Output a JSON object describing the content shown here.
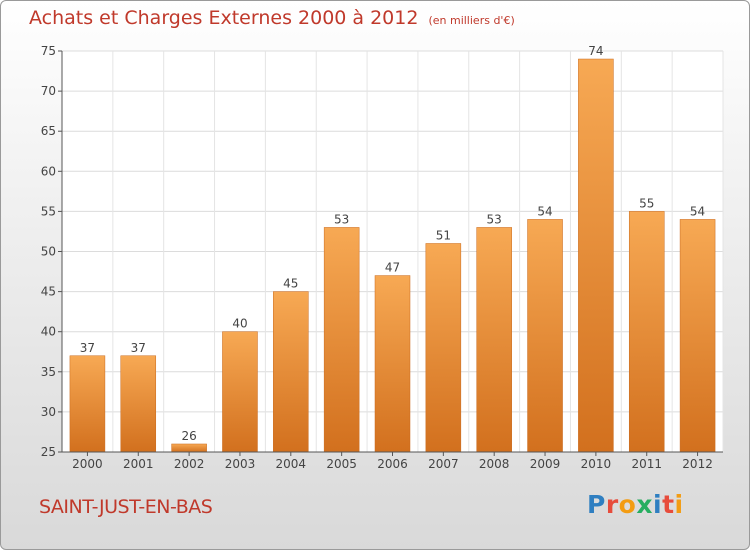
{
  "title": "Achats et Charges Externes 2000 à 2012",
  "unit": "(en milliers d'€)",
  "place": "SAINT-JUST-EN-BAS",
  "brand": {
    "letters": [
      "P",
      "r",
      "o",
      "x",
      "i",
      "t",
      "i"
    ],
    "colors": [
      "#2f7fc1",
      "#e74c3c",
      "#f39c12",
      "#27ae60",
      "#2f7fc1",
      "#e74c3c",
      "#f39c12"
    ]
  },
  "colors": {
    "bar_light": "#f7a954",
    "bar_dark": "#d2701e",
    "accent": "#c0392b"
  },
  "chart_data": {
    "type": "bar",
    "categories": [
      "2000",
      "2001",
      "2002",
      "2003",
      "2004",
      "2005",
      "2006",
      "2007",
      "2008",
      "2009",
      "2010",
      "2011",
      "2012"
    ],
    "values": [
      37,
      37,
      26,
      40,
      45,
      53,
      47,
      51,
      53,
      54,
      74,
      55,
      54
    ],
    "ylim": [
      25,
      75
    ],
    "yticks": [
      25,
      30,
      35,
      40,
      45,
      50,
      55,
      60,
      65,
      70,
      75
    ],
    "xlabel": "",
    "ylabel": "",
    "grid": true,
    "data_labels": true
  }
}
